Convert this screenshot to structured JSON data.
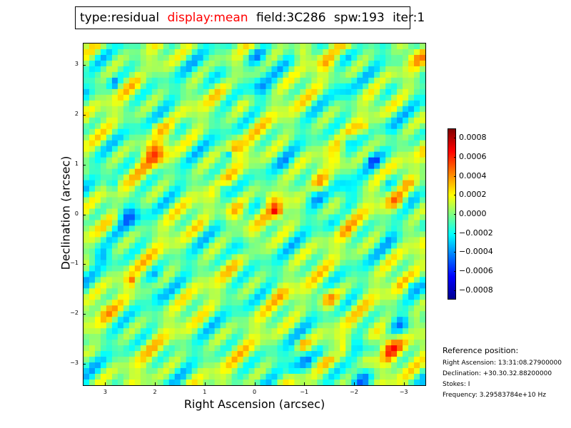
{
  "title_box": {
    "type": "type:residual",
    "display": "display:mean",
    "field": "field:3C286",
    "spw": "spw:193",
    "iter": "iter:1"
  },
  "colors": {
    "display_highlight": "#ff0000"
  },
  "chart_data": {
    "type": "heatmap",
    "title": "",
    "xlabel": "Right Ascension (arcsec)",
    "ylabel": "Declination (arcsec)",
    "xlim": [
      3.45,
      -3.45
    ],
    "ylim": [
      -3.45,
      3.45
    ],
    "xticks": [
      "3",
      "2",
      "1",
      "0",
      "−1",
      "−2",
      "−3"
    ],
    "yticks": [
      "3",
      "2",
      "1",
      "0",
      "−1",
      "−2",
      "−3"
    ],
    "colorbar": {
      "ticks": [
        "0.0008",
        "0.0006",
        "0.0004",
        "0.0002",
        "0.0000",
        "−0.0002",
        "−0.0004",
        "−0.0006",
        "−0.0008"
      ],
      "range": [
        -0.0009,
        0.0009
      ],
      "colormap": "jet"
    },
    "pattern": "diagonal residual stripes, mostly near zero with scattered positive and negative peaks"
  },
  "reference": {
    "heading": "Reference position:",
    "ra": "Right Ascension: 13:31:08.27900000",
    "dec": "Declination: +30.30.32.88200000",
    "stokes": "Stokes: I",
    "freq": "Frequency: 3.29583784e+10 Hz"
  }
}
